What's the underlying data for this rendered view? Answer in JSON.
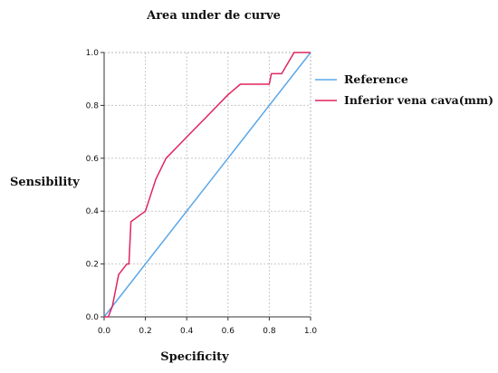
{
  "chart_data": {
    "type": "line",
    "title": "Area under de curve",
    "xlabel": "Specificity",
    "ylabel": "Sensibility",
    "xlim": [
      0,
      1
    ],
    "ylim": [
      0,
      1
    ],
    "xticks": [
      "0.0",
      "0.2",
      "0.4",
      "0.6",
      "0.8",
      "1.0"
    ],
    "yticks": [
      "0.0",
      "0.2",
      "0.4",
      "0.6",
      "0.8",
      "1.0"
    ],
    "grid": true,
    "legend_position": "right",
    "series": [
      {
        "name": "Reference",
        "color": "#5aa7e8",
        "x": [
          0,
          1
        ],
        "y": [
          0,
          1
        ]
      },
      {
        "name": "Inferior vena cava(mm)",
        "color": "#e0245e",
        "x": [
          0.0,
          0.02,
          0.04,
          0.07,
          0.11,
          0.12,
          0.13,
          0.2,
          0.25,
          0.3,
          0.35,
          0.4,
          0.5,
          0.6,
          0.66,
          0.8,
          0.81,
          0.86,
          0.92,
          1.0
        ],
        "y": [
          0.0,
          0.0,
          0.04,
          0.16,
          0.2,
          0.2,
          0.36,
          0.4,
          0.52,
          0.6,
          0.64,
          0.68,
          0.76,
          0.84,
          0.88,
          0.88,
          0.92,
          0.92,
          1.0,
          1.0
        ]
      }
    ]
  }
}
